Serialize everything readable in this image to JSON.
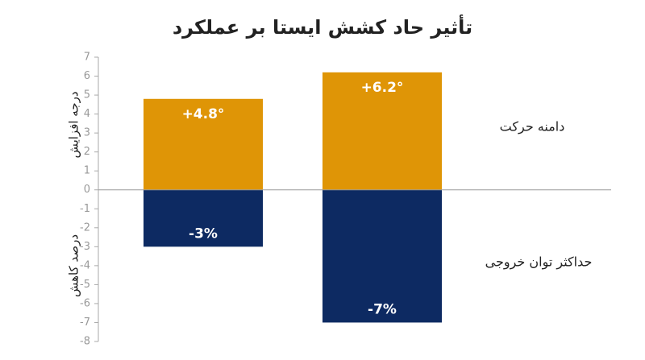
{
  "chart_data": {
    "type": "bar",
    "title": "تأثیر حاد کشش ایستا بر عملکرد",
    "ylabel_top": "درجه افزایش",
    "ylabel_bottom": "درصد کاهش",
    "categories": [
      null,
      null
    ],
    "series": [
      {
        "name": "دامنه حرکت",
        "color": "#df9506",
        "values": [
          4.8,
          6.2
        ],
        "value_labels": [
          "+4.8°",
          "+6.2°"
        ]
      },
      {
        "name": "حداکثر توان خروجی",
        "color": "#0d2a62",
        "values": [
          -3,
          -7
        ],
        "value_labels": [
          "-3%",
          "-7%"
        ]
      }
    ],
    "ylim": [
      -8,
      7
    ],
    "yticks": [
      7,
      6,
      5,
      4,
      3,
      2,
      1,
      0,
      -1,
      -2,
      -3,
      -4,
      -5,
      -6,
      -7,
      -8
    ]
  }
}
